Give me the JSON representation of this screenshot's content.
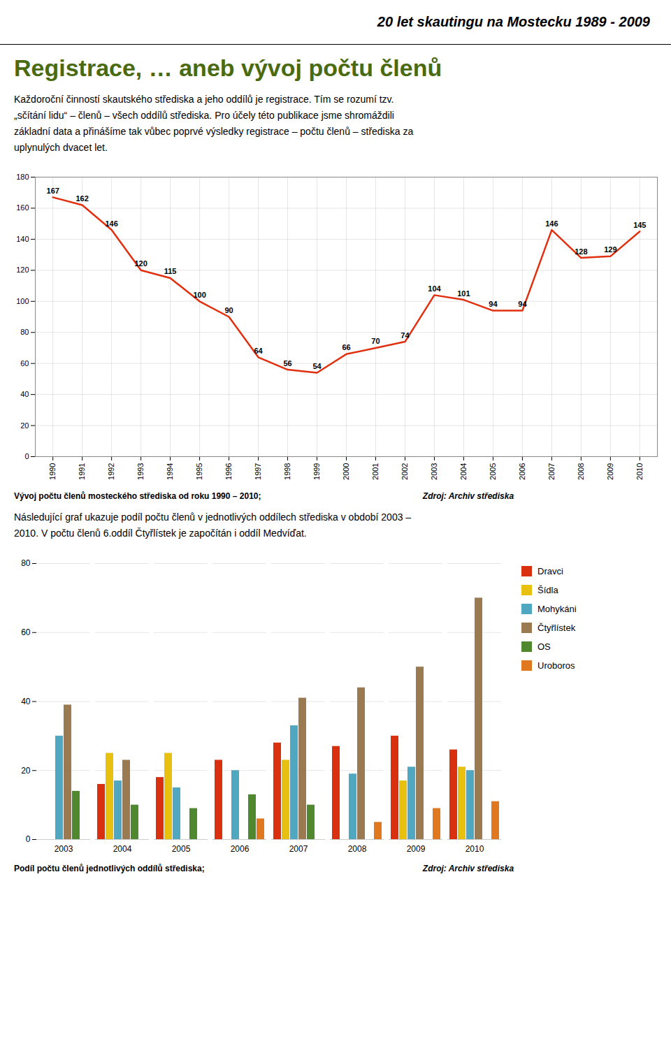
{
  "title": "20 let skautingu na Mostecku 1989 - 2009",
  "chart_data": [
    {
      "type": "line",
      "title": "Registrace, … aneb vývoj počtu členů",
      "subtitle": "Každoroční činností skautského střediska a jeho oddílů je registrace. Tím se rozumí tzv.\n„sčítání lidu“ – členů – všech oddílů střediska. Pro účely této publikace jsme shromáždili\nzákladní data a přinášíme tak vůbec poprvé výsledky registrace – počtu členů – střediska za\nuplynulých dvacet let.",
      "x": [
        1990,
        1991,
        1992,
        1993,
        1994,
        1995,
        1996,
        1997,
        1998,
        1999,
        2000,
        2001,
        2002,
        2003,
        2004,
        2005,
        2006,
        2007,
        2008,
        2009,
        2010
      ],
      "values": [
        167,
        162,
        146,
        120,
        115,
        100,
        90,
        64,
        56,
        54,
        66,
        70,
        74,
        104,
        101,
        94,
        94,
        146,
        128,
        129,
        145
      ],
      "color": "#e03010",
      "xlim": [
        1989.4,
        2010.6
      ],
      "xticks": [
        1990,
        1991,
        1992,
        1993,
        1994,
        1995,
        1996,
        1997,
        1998,
        1999,
        2000,
        2001,
        2002,
        2003,
        2004,
        2005,
        2006,
        2007,
        2008,
        2009,
        2010
      ],
      "ylim": [
        0,
        180
      ],
      "yticks": [
        0,
        20,
        40,
        60,
        80,
        100,
        120,
        140,
        160,
        180
      ],
      "grid": true,
      "data_labels": true,
      "annotations": [
        "Vývoj počtu členů mosteckého střediska od roku 1990 – 2010;",
        "Zdroj: Archiv střediska"
      ]
    },
    {
      "type": "bar",
      "subtitle": "Následující graf ukazuje podíl počtu členů v jednotlivých oddílech střediska v období 2003 –\n2010. V počtu členů 6.oddíl Čtyřlístek je započítán i oddíl Medvíďat.",
      "categories": [
        2003,
        2004,
        2005,
        2006,
        2007,
        2008,
        2009,
        2010
      ],
      "series": [
        {
          "name": "Dravci",
          "color": "#d93010",
          "values": [
            0,
            16,
            18,
            23,
            28,
            27,
            30,
            26
          ]
        },
        {
          "name": "Šídla",
          "color": "#e8c010",
          "values": [
            0,
            25,
            25,
            0,
            23,
            0,
            17,
            21
          ]
        },
        {
          "name": "Mohykáni",
          "color": "#50a8c0",
          "values": [
            30,
            17,
            15,
            20,
            33,
            19,
            21,
            20
          ]
        },
        {
          "name": "Čtyřlístek",
          "color": "#9a7a50",
          "values": [
            39,
            23,
            0,
            0,
            41,
            44,
            50,
            70
          ]
        },
        {
          "name": "OS",
          "color": "#508830",
          "values": [
            14,
            10,
            9,
            13,
            10,
            0,
            0,
            0
          ]
        },
        {
          "name": "Uroboros",
          "color": "#e07820",
          "values": [
            0,
            0,
            0,
            6,
            0,
            5,
            9,
            11
          ]
        }
      ],
      "ylim": [
        0,
        80
      ],
      "yticks": [
        0,
        20,
        40,
        60,
        80
      ],
      "grid": "y",
      "legend": "right",
      "annotations": [
        "Podíl počtu členů jednotlivých oddílů střediska;",
        "Zdroj: Archiv střediska"
      ]
    }
  ]
}
